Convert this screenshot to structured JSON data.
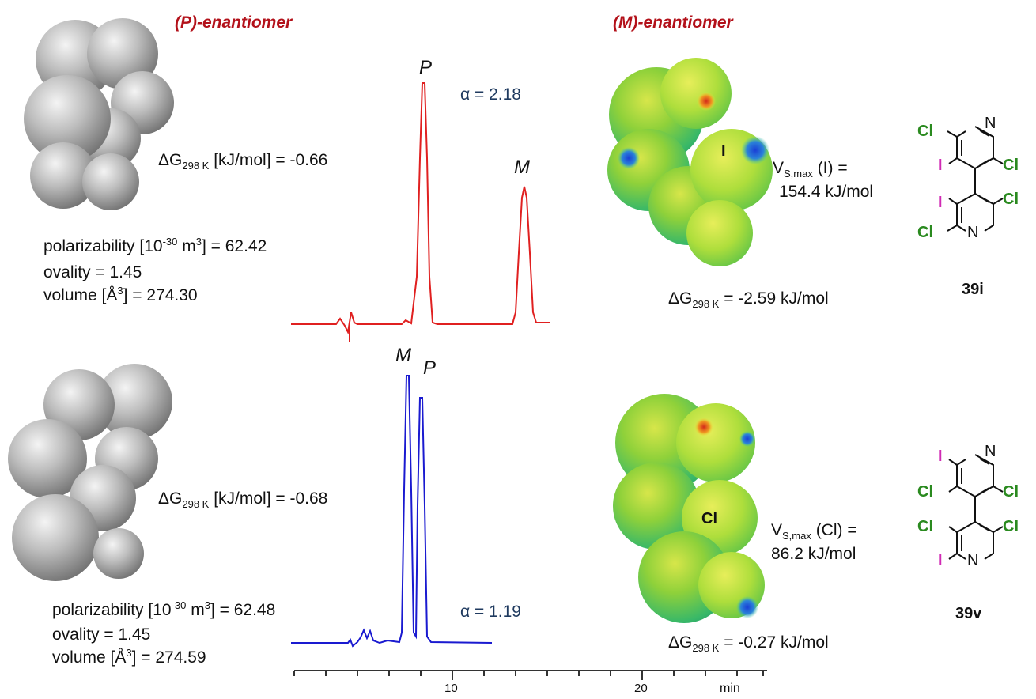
{
  "headers": {
    "p_enantiomer": "(P)-enantiomer",
    "m_enantiomer": "(M)-enantiomer"
  },
  "top": {
    "dG_label": "ΔG",
    "dG_sub": "298 K",
    "dG_rest": " [kJ/mol] = -0.66",
    "pol_pre": "polarizability [10",
    "pol_sup": "-30",
    "pol_mid": " m",
    "pol_sup2": "3",
    "pol_rest": "] = 62.42",
    "ovality": "ovality = 1.45",
    "vol_pre": "volume [Å",
    "vol_sup": "3",
    "vol_rest": "] = 274.30",
    "alpha": "α = 2.18",
    "peak1": "P",
    "peak2": "M",
    "vs_pre": "V",
    "vs_sub": "S,max",
    "vs_rest": " (I) =",
    "vs_val": "154.4 kJ/mol",
    "dGm_rest": " = -2.59 kJ/mol",
    "atom_label": "I",
    "compound": "39i"
  },
  "bottom": {
    "dG_rest": " [kJ/mol] = -0.68",
    "pol_pre": "polarizability  [10",
    "pol_rest": "]  = 62.48",
    "ovality": "ovality = 1.45",
    "vol_rest": "] = 274.59",
    "alpha": "α = 1.19",
    "peak1": "M",
    "peak2": "P",
    "vs_rest": " (Cl) =",
    "vs_val": "86.2 kJ/mol",
    "dGm_rest": " = -0.27 kJ/mol",
    "atom_label": "Cl",
    "compound": "39v"
  },
  "axis": {
    "ticks": [
      "10",
      "20"
    ],
    "unit": "min"
  },
  "structure_atoms": {
    "cl": "Cl",
    "i": "I",
    "n": "N"
  },
  "colors": {
    "header": "#b3111a",
    "red_trace": "#e02020",
    "blue_trace": "#1a1ad0",
    "cl": "#2a8a1f",
    "iodine": "#d02ab4"
  }
}
